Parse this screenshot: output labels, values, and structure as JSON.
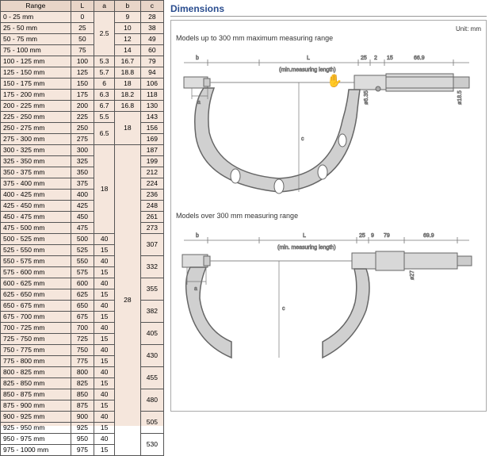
{
  "table": {
    "headers": [
      "Range",
      "L",
      "a",
      "b",
      "c"
    ],
    "rows": [
      [
        "0 - 25 mm",
        "0",
        "2.5",
        "9",
        "28"
      ],
      [
        "25 - 50 mm",
        "25",
        "2.5",
        "10",
        "38"
      ],
      [
        "50 - 75 mm",
        "50",
        "2.5",
        "12",
        "49"
      ],
      [
        "75 - 100 mm",
        "75",
        "2.5",
        "14",
        "60"
      ],
      [
        "100 - 125 mm",
        "100",
        "5.3",
        "16.7",
        "79"
      ],
      [
        "125 - 150 mm",
        "125",
        "5.7",
        "18.8",
        "94"
      ],
      [
        "150 - 175 mm",
        "150",
        "6",
        "18",
        "106"
      ],
      [
        "175 - 200 mm",
        "175",
        "6.3",
        "18.2",
        "118"
      ],
      [
        "200 - 225 mm",
        "200",
        "6.7",
        "16.8",
        "130"
      ],
      [
        "225 - 250 mm",
        "225",
        "5.5",
        "18",
        "143"
      ],
      [
        "250 - 275 mm",
        "250",
        "6.5",
        "18",
        "156"
      ],
      [
        "275 - 300 mm",
        "275",
        "6.5",
        "18",
        "169"
      ],
      [
        "300 - 325 mm",
        "300",
        "18",
        "28",
        "187"
      ],
      [
        "325 - 350 mm",
        "325",
        "18",
        "28",
        "199"
      ],
      [
        "350 - 375 mm",
        "350",
        "18",
        "28",
        "212"
      ],
      [
        "375 - 400 mm",
        "375",
        "18",
        "28",
        "224"
      ],
      [
        "400 - 425 mm",
        "400",
        "18",
        "28",
        "236"
      ],
      [
        "425 - 450 mm",
        "425",
        "18",
        "28",
        "248"
      ],
      [
        "450 - 475 mm",
        "450",
        "18",
        "28",
        "261"
      ],
      [
        "475 - 500 mm",
        "475",
        "18",
        "28",
        "273"
      ],
      [
        "500 - 525 mm",
        "500",
        "40",
        "28",
        "307"
      ],
      [
        "525 - 550 mm",
        "525",
        "15",
        "28",
        "307"
      ],
      [
        "550 - 575 mm",
        "550",
        "40",
        "28",
        "332"
      ],
      [
        "575 - 600 mm",
        "575",
        "15",
        "28",
        "332"
      ],
      [
        "600 - 625 mm",
        "600",
        "40",
        "28",
        "355"
      ],
      [
        "625 - 650 mm",
        "625",
        "15",
        "28",
        "355"
      ],
      [
        "650 - 675 mm",
        "650",
        "40",
        "28",
        "382"
      ],
      [
        "675 - 700 mm",
        "675",
        "15",
        "28",
        "382"
      ],
      [
        "700 - 725 mm",
        "700",
        "40",
        "28",
        "405"
      ],
      [
        "725 - 750 mm",
        "725",
        "15",
        "28",
        "405"
      ],
      [
        "750 - 775 mm",
        "750",
        "40",
        "28",
        "430"
      ],
      [
        "775 - 800 mm",
        "775",
        "15",
        "28",
        "430"
      ],
      [
        "800 - 825 mm",
        "800",
        "40",
        "28",
        "455"
      ],
      [
        "825 - 850 mm",
        "825",
        "15",
        "28",
        "455"
      ],
      [
        "850 - 875 mm",
        "850",
        "40",
        "28",
        "480"
      ],
      [
        "875 - 900 mm",
        "875",
        "15",
        "28",
        "480"
      ],
      [
        "900 - 925 mm",
        "900",
        "40",
        "28",
        "505"
      ],
      [
        "925 - 950 mm",
        "925",
        "15",
        "28",
        "505"
      ],
      [
        "950 - 975 mm",
        "950",
        "40",
        "28",
        "530"
      ],
      [
        "975 - 1000 mm",
        "975",
        "15",
        "28",
        "530"
      ]
    ],
    "merges": {
      "a": [
        [
          0,
          3
        ],
        [
          9,
          9
        ],
        [
          10,
          11
        ],
        [
          12,
          19
        ]
      ],
      "b": [
        [
          9,
          11
        ],
        [
          12,
          19
        ]
      ],
      "c": [
        [
          20,
          21
        ],
        [
          22,
          23
        ],
        [
          24,
          25
        ],
        [
          26,
          27
        ],
        [
          28,
          29
        ],
        [
          30,
          31
        ],
        [
          32,
          33
        ],
        [
          34,
          35
        ],
        [
          36,
          37
        ],
        [
          38,
          39
        ]
      ],
      "a40": [
        [
          20,
          39
        ]
      ],
      "b28": [
        [
          20,
          39
        ]
      ]
    },
    "header_bg": "#e8d5c8",
    "body_bg": "#f5e6dc",
    "border_color": "#555555"
  },
  "dimensions": {
    "title": "Dimensions",
    "unit": "Unit: mm",
    "model1_label": "Models up to 300 mm maximum measuring range",
    "model2_label": "Models over 300 mm measuring range",
    "labels1": {
      "b": "b",
      "L": "L",
      "min": "(min.measuring length)",
      "d25": "25",
      "d2": "2",
      "d15": "15",
      "d669": "66.9",
      "a": "a",
      "c": "c",
      "d185": "ø18.5",
      "d63": "ø6.35"
    },
    "labels2": {
      "b": "b",
      "L": "L",
      "min": "(min. measuring length)",
      "d25": "25",
      "d9": "9",
      "d79": "79",
      "d699": "69.9",
      "a": "a",
      "c": "c",
      "d27": "ø27"
    },
    "colors": {
      "title": "#2a4d8f",
      "stroke": "#777",
      "frame_fill": "#d8d8d8",
      "body_fill": "#c8c8c8"
    }
  }
}
